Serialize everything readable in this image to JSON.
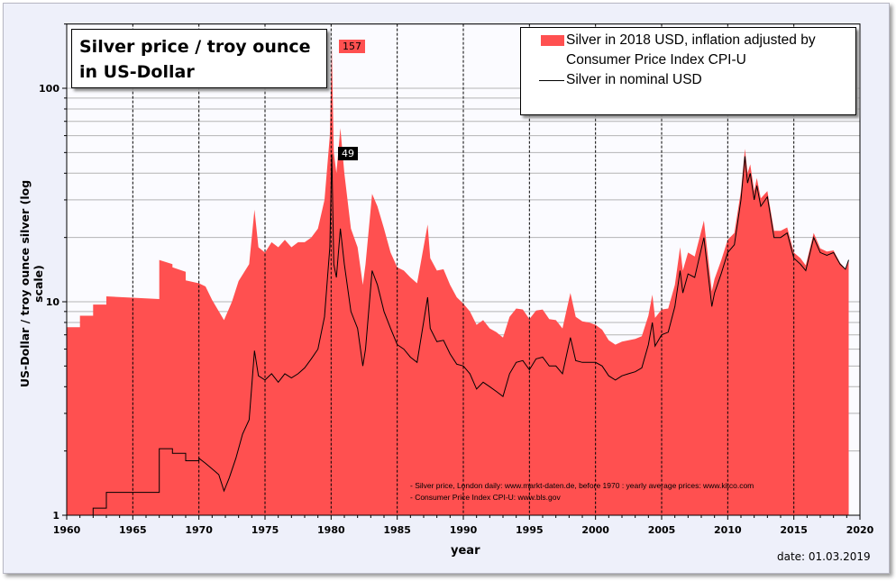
{
  "chart_data": {
    "type": "area",
    "title": "Silver price / troy ounce in US-Dollar",
    "xlabel": "year",
    "ylabel": "US-Dollar / troy ounce silver (log scale)",
    "xlim": [
      1960,
      2020
    ],
    "ylim": [
      1,
      200
    ],
    "yscale": "log",
    "x_ticks": [
      1960,
      1965,
      1970,
      1975,
      1980,
      1985,
      1990,
      1995,
      2000,
      2005,
      2010,
      2015,
      2020
    ],
    "x_tick_labels": [
      "1960",
      "1965",
      "1970",
      "1975",
      "1980",
      "1985",
      "1990",
      "1995",
      "2000",
      "2005",
      "2010",
      "2015",
      "2020"
    ],
    "y_tick_labels": [
      "1",
      "10",
      "100"
    ],
    "y_ticks": [
      1,
      10,
      100
    ],
    "grid": true,
    "legend_position": "top-right",
    "legend": [
      "Silver in 2018 USD, inflation adjusted by",
      "Consumer Price Index CPI-U",
      "Silver in nominal USD"
    ],
    "annotations": {
      "peak_real": "157",
      "peak_nominal": "49"
    },
    "notes": [
      "- Silver price, London daily: www.markt-daten.de,  before 1970 :  yearly  average prices: www.kitco.com",
      "- Consumer Price Index CPI-U: www.bls.gov"
    ],
    "date_label": "date: 01.03.2019",
    "series": [
      {
        "name": "Silver in 2018 USD, inflation adjusted by Consumer Price Index CPI-U",
        "type": "area",
        "color": "#ff5050",
        "points": [
          [
            1960,
            7.6
          ],
          [
            1961,
            7.6
          ],
          [
            1961,
            8.6
          ],
          [
            1962,
            8.6
          ],
          [
            1962,
            9.7
          ],
          [
            1963,
            9.7
          ],
          [
            1963,
            10.6
          ],
          [
            1967,
            10.3
          ],
          [
            1967,
            15.7
          ],
          [
            1968,
            15.0
          ],
          [
            1968,
            14.5
          ],
          [
            1969,
            13.8
          ],
          [
            1969,
            12.6
          ],
          [
            1970,
            12.2
          ],
          [
            1970.5,
            11.8
          ],
          [
            1971,
            10.2
          ],
          [
            1971.9,
            8.2
          ],
          [
            1972.5,
            10
          ],
          [
            1973,
            12.5
          ],
          [
            1973.8,
            15
          ],
          [
            1974.2,
            27
          ],
          [
            1974.5,
            18
          ],
          [
            1975,
            17
          ],
          [
            1975.5,
            19
          ],
          [
            1976,
            18
          ],
          [
            1976.5,
            19.5
          ],
          [
            1977,
            18
          ],
          [
            1977.5,
            19
          ],
          [
            1978,
            19
          ],
          [
            1978.5,
            20
          ],
          [
            1979,
            22
          ],
          [
            1979.5,
            30
          ],
          [
            1979.9,
            60
          ],
          [
            1980.05,
            157
          ],
          [
            1980.2,
            50
          ],
          [
            1980.4,
            40
          ],
          [
            1980.7,
            65
          ],
          [
            1981,
            40
          ],
          [
            1981.5,
            22
          ],
          [
            1982,
            18
          ],
          [
            1982.4,
            12
          ],
          [
            1982.6,
            15
          ],
          [
            1983.1,
            32
          ],
          [
            1983.5,
            28
          ],
          [
            1984,
            22
          ],
          [
            1984.5,
            17
          ],
          [
            1985,
            14.5
          ],
          [
            1985.5,
            14
          ],
          [
            1986,
            13
          ],
          [
            1986.5,
            12.2
          ],
          [
            1987.3,
            23
          ],
          [
            1987.5,
            16
          ],
          [
            1988,
            14
          ],
          [
            1988.5,
            14.2
          ],
          [
            1989,
            12
          ],
          [
            1989.5,
            10.5
          ],
          [
            1990,
            9.8
          ],
          [
            1990.5,
            9
          ],
          [
            1991,
            7.8
          ],
          [
            1991.5,
            8.2
          ],
          [
            1992,
            7.5
          ],
          [
            1992.5,
            7.2
          ],
          [
            1993,
            6.8
          ],
          [
            1993.5,
            8.5
          ],
          [
            1994,
            9.3
          ],
          [
            1994.5,
            9.2
          ],
          [
            1995,
            8.3
          ],
          [
            1995.5,
            9.1
          ],
          [
            1996,
            9.2
          ],
          [
            1996.5,
            8.3
          ],
          [
            1997,
            8.2
          ],
          [
            1997.5,
            7.5
          ],
          [
            1998.1,
            11
          ],
          [
            1998.5,
            8.5
          ],
          [
            1999,
            8.1
          ],
          [
            1999.5,
            8
          ],
          [
            2000,
            7.8
          ],
          [
            2000.5,
            7.4
          ],
          [
            2001,
            6.6
          ],
          [
            2001.5,
            6.3
          ],
          [
            2002,
            6.5
          ],
          [
            2002.5,
            6.6
          ],
          [
            2003,
            6.7
          ],
          [
            2003.5,
            6.9
          ],
          [
            2004,
            8.6
          ],
          [
            2004.3,
            10.8
          ],
          [
            2004.5,
            8.4
          ],
          [
            2005,
            9.2
          ],
          [
            2005.5,
            9.3
          ],
          [
            2006,
            12
          ],
          [
            2006.4,
            18
          ],
          [
            2006.6,
            14
          ],
          [
            2007,
            17
          ],
          [
            2007.5,
            16.3
          ],
          [
            2008.2,
            24
          ],
          [
            2008.8,
            11.2
          ],
          [
            2009,
            12.8
          ],
          [
            2009.5,
            15.6
          ],
          [
            2010,
            19.5
          ],
          [
            2010.5,
            21
          ],
          [
            2011,
            33
          ],
          [
            2011.3,
            52
          ],
          [
            2011.5,
            40
          ],
          [
            2011.7,
            44
          ],
          [
            2012,
            33
          ],
          [
            2012.2,
            38
          ],
          [
            2012.5,
            30.5
          ],
          [
            2013,
            33
          ],
          [
            2013.5,
            21.5
          ],
          [
            2014,
            21.5
          ],
          [
            2014.5,
            22.3
          ],
          [
            2015,
            17
          ],
          [
            2015.5,
            16
          ],
          [
            2015.9,
            14.8
          ],
          [
            2016.5,
            21
          ],
          [
            2017,
            17.8
          ],
          [
            2017.5,
            17.2
          ],
          [
            2018,
            17.4
          ],
          [
            2018.5,
            15.2
          ],
          [
            2018.9,
            14.3
          ],
          [
            2019.15,
            15.7
          ]
        ]
      },
      {
        "name": "Silver in nominal USD",
        "type": "line",
        "color": "#000000",
        "points": [
          [
            1960,
            0.91
          ],
          [
            1961,
            0.91
          ],
          [
            1961,
            1.0
          ],
          [
            1962,
            1.0
          ],
          [
            1962,
            1.08
          ],
          [
            1963,
            1.08
          ],
          [
            1963,
            1.28
          ],
          [
            1967,
            1.28
          ],
          [
            1967,
            2.05
          ],
          [
            1968,
            2.05
          ],
          [
            1968,
            1.95
          ],
          [
            1969,
            1.95
          ],
          [
            1969,
            1.8
          ],
          [
            1970,
            1.8
          ],
          [
            1970,
            1.85
          ],
          [
            1970.5,
            1.75
          ],
          [
            1971,
            1.65
          ],
          [
            1971.5,
            1.55
          ],
          [
            1971.9,
            1.3
          ],
          [
            1972.3,
            1.5
          ],
          [
            1972.8,
            1.85
          ],
          [
            1973.3,
            2.4
          ],
          [
            1973.8,
            2.8
          ],
          [
            1974.2,
            5.9
          ],
          [
            1974.5,
            4.5
          ],
          [
            1975,
            4.3
          ],
          [
            1975.5,
            4.6
          ],
          [
            1976,
            4.2
          ],
          [
            1976.5,
            4.6
          ],
          [
            1977,
            4.4
          ],
          [
            1977.5,
            4.6
          ],
          [
            1978,
            4.9
          ],
          [
            1978.5,
            5.4
          ],
          [
            1979,
            6
          ],
          [
            1979.5,
            8.5
          ],
          [
            1979.9,
            18
          ],
          [
            1980.05,
            49
          ],
          [
            1980.2,
            15
          ],
          [
            1980.4,
            13
          ],
          [
            1980.7,
            22
          ],
          [
            1981,
            15
          ],
          [
            1981.5,
            9
          ],
          [
            1982,
            7.5
          ],
          [
            1982.4,
            5
          ],
          [
            1982.6,
            6
          ],
          [
            1983.1,
            14
          ],
          [
            1983.5,
            12
          ],
          [
            1984,
            9
          ],
          [
            1984.5,
            7.5
          ],
          [
            1985,
            6.3
          ],
          [
            1985.5,
            6
          ],
          [
            1986,
            5.5
          ],
          [
            1986.5,
            5.2
          ],
          [
            1987.3,
            10.5
          ],
          [
            1987.5,
            7.5
          ],
          [
            1988,
            6.5
          ],
          [
            1988.5,
            6.6
          ],
          [
            1989,
            5.7
          ],
          [
            1989.5,
            5.1
          ],
          [
            1990,
            5
          ],
          [
            1990.5,
            4.6
          ],
          [
            1991,
            3.9
          ],
          [
            1991.5,
            4.2
          ],
          [
            1992,
            4
          ],
          [
            1992.5,
            3.8
          ],
          [
            1993,
            3.6
          ],
          [
            1993.5,
            4.6
          ],
          [
            1994,
            5.2
          ],
          [
            1994.5,
            5.3
          ],
          [
            1995,
            4.8
          ],
          [
            1995.5,
            5.4
          ],
          [
            1996,
            5.5
          ],
          [
            1996.5,
            5
          ],
          [
            1997,
            5
          ],
          [
            1997.5,
            4.6
          ],
          [
            1998.1,
            6.8
          ],
          [
            1998.5,
            5.3
          ],
          [
            1999,
            5.2
          ],
          [
            1999.5,
            5.2
          ],
          [
            2000,
            5.2
          ],
          [
            2000.5,
            5
          ],
          [
            2001,
            4.5
          ],
          [
            2001.5,
            4.3
          ],
          [
            2002,
            4.5
          ],
          [
            2002.5,
            4.6
          ],
          [
            2003,
            4.7
          ],
          [
            2003.5,
            4.9
          ],
          [
            2004,
            6.3
          ],
          [
            2004.3,
            8
          ],
          [
            2004.5,
            6.2
          ],
          [
            2005,
            7
          ],
          [
            2005.5,
            7.2
          ],
          [
            2006,
            9.5
          ],
          [
            2006.4,
            14
          ],
          [
            2006.6,
            11
          ],
          [
            2007,
            13.5
          ],
          [
            2007.5,
            13
          ],
          [
            2008.2,
            20
          ],
          [
            2008.8,
            9.5
          ],
          [
            2009,
            11
          ],
          [
            2009.5,
            13.5
          ],
          [
            2010,
            17
          ],
          [
            2010.5,
            18.5
          ],
          [
            2011,
            30
          ],
          [
            2011.3,
            48
          ],
          [
            2011.5,
            36
          ],
          [
            2011.7,
            40
          ],
          [
            2012,
            30
          ],
          [
            2012.2,
            35
          ],
          [
            2012.5,
            28
          ],
          [
            2013,
            31
          ],
          [
            2013.5,
            20
          ],
          [
            2014,
            20
          ],
          [
            2014.5,
            21
          ],
          [
            2015,
            16
          ],
          [
            2015.5,
            15
          ],
          [
            2015.9,
            14
          ],
          [
            2016.5,
            20
          ],
          [
            2017,
            17
          ],
          [
            2017.5,
            16.5
          ],
          [
            2018,
            17
          ],
          [
            2018.5,
            15
          ],
          [
            2018.9,
            14.2
          ],
          [
            2019.15,
            15.7
          ]
        ]
      }
    ]
  }
}
